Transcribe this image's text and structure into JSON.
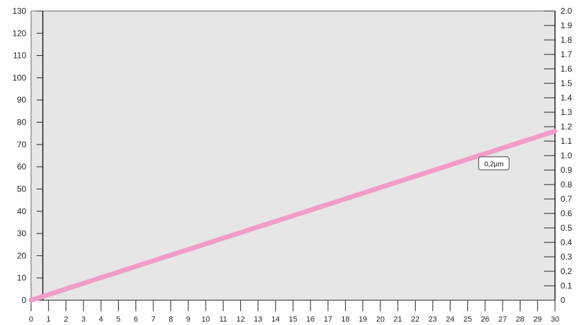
{
  "chart_data": {
    "type": "line",
    "title": "",
    "xlabel": "",
    "ylabel": "",
    "y2label": "",
    "x_ticks": [
      "0",
      "1",
      "2",
      "3",
      "4",
      "5",
      "6",
      "7",
      "8",
      "9",
      "10",
      "11",
      "12",
      "13",
      "14",
      "15",
      "16",
      "17",
      "18",
      "19",
      "20",
      "21",
      "22",
      "23",
      "24",
      "25",
      "26",
      "27",
      "28",
      "29",
      "30"
    ],
    "y_ticks_left": [
      "0",
      "10",
      "20",
      "30",
      "40",
      "50",
      "60",
      "70",
      "80",
      "90",
      "100",
      "110",
      "120",
      "130"
    ],
    "y_ticks_right": [
      "0",
      "0.1",
      "0.2",
      "0.3",
      "0.4",
      "0.5",
      "0.6",
      "0.7",
      "0.8",
      "0.9",
      "1.0",
      "1.1",
      "1.2",
      "1.3",
      "1.4",
      "1.5",
      "1.6",
      "1.7",
      "1.8",
      "1.9",
      "2.0"
    ],
    "xlim": [
      0,
      30
    ],
    "ylim_left": [
      0,
      130
    ],
    "ylim_right": [
      0,
      2.0
    ],
    "grid": false,
    "plot_background": "#e6e6e6",
    "series": [
      {
        "color": "#f29cc8",
        "axis": "left",
        "x": [
          0,
          30
        ],
        "y": [
          0,
          76
        ]
      }
    ],
    "annotations": [
      {
        "text": "0,2µm",
        "x": 26.5,
        "y": 61.5
      }
    ]
  }
}
